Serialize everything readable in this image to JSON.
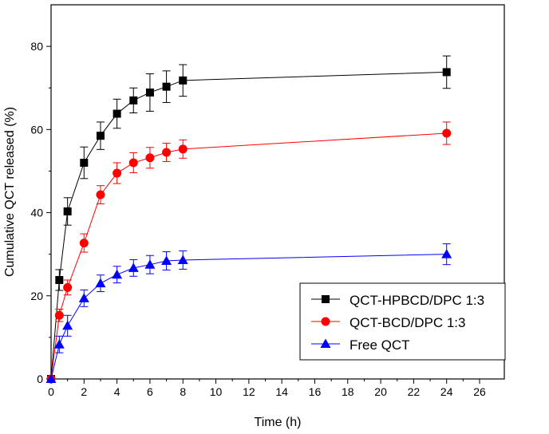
{
  "chart_data": {
    "type": "line",
    "xlabel": "Time (h)",
    "ylabel": "Cumulative QCT released (%)",
    "xlim": [
      0,
      27.5
    ],
    "ylim": [
      0,
      90
    ],
    "x_ticks": [
      0,
      2,
      4,
      6,
      8,
      10,
      12,
      14,
      16,
      18,
      20,
      22,
      24,
      26
    ],
    "y_ticks": [
      0,
      20,
      40,
      60,
      80
    ],
    "x": [
      0,
      0.5,
      1,
      2,
      3,
      4,
      5,
      6,
      7,
      8,
      24
    ],
    "series": [
      {
        "name": "QCT-HPBCD/DPC 1:3",
        "color": "#000000",
        "marker": "square",
        "values": [
          0,
          23.8,
          40.3,
          52.0,
          58.5,
          63.8,
          67.0,
          68.9,
          70.3,
          71.8,
          73.8
        ],
        "errors": [
          0,
          2.5,
          3.3,
          3.8,
          3.3,
          3.5,
          3.0,
          4.5,
          3.8,
          3.8,
          3.9
        ]
      },
      {
        "name": "QCT-BCD/DPC 1:3",
        "color": "#ff0000",
        "marker": "circle",
        "values": [
          0,
          15.3,
          22.0,
          32.7,
          44.3,
          49.5,
          52.0,
          53.2,
          54.5,
          55.3,
          59.1
        ],
        "errors": [
          0,
          1.5,
          1.8,
          2.2,
          2.2,
          2.5,
          2.4,
          2.5,
          2.2,
          2.2,
          2.7
        ]
      },
      {
        "name": "Free QCT",
        "color": "#0000ff",
        "marker": "triangle",
        "values": [
          0,
          8.3,
          12.8,
          19.4,
          23.0,
          25.1,
          26.7,
          27.5,
          28.4,
          28.6,
          30.0
        ],
        "errors": [
          0,
          2.0,
          2.5,
          2.0,
          2.0,
          2.0,
          2.0,
          2.2,
          2.2,
          2.2,
          2.5
        ]
      }
    ],
    "legend_position": "bottom-right"
  }
}
